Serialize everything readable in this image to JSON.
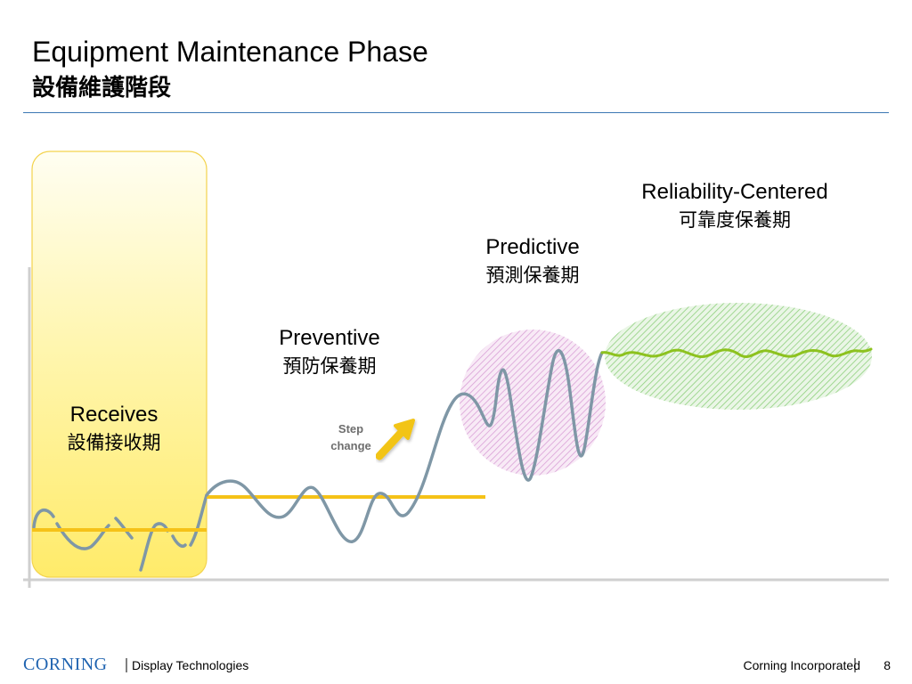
{
  "slide": {
    "title_en": "Equipment Maintenance Phase",
    "title_zh": "設備維護階段"
  },
  "phases": {
    "receives": {
      "en": "Receives",
      "zh": "設備接收期"
    },
    "preventive": {
      "en": "Preventive",
      "zh": "預防保養期"
    },
    "predictive": {
      "en": "Predictive",
      "zh": "預測保養期"
    },
    "reliability": {
      "en": "Reliability-Centered",
      "zh": "可靠度保養期"
    }
  },
  "annotation": {
    "step_change_line1": "Step",
    "step_change_line2": "change"
  },
  "footer": {
    "logo": "CORNING",
    "left_text": "Display Technologies",
    "right_text": "Corning Incorporated",
    "page_number": "8"
  },
  "colors": {
    "title_rule": "#3c78b4",
    "receives_fill": "#fff079",
    "threshold_line": "#f5c218",
    "wave": "#7f97a6",
    "predictive_hatch": "#d9a0d6",
    "rcm_hatch": "#8ed07d",
    "rcm_wave": "#8dc21f",
    "arrow": "#f2c417",
    "brand_blue": "#1f63b0"
  }
}
